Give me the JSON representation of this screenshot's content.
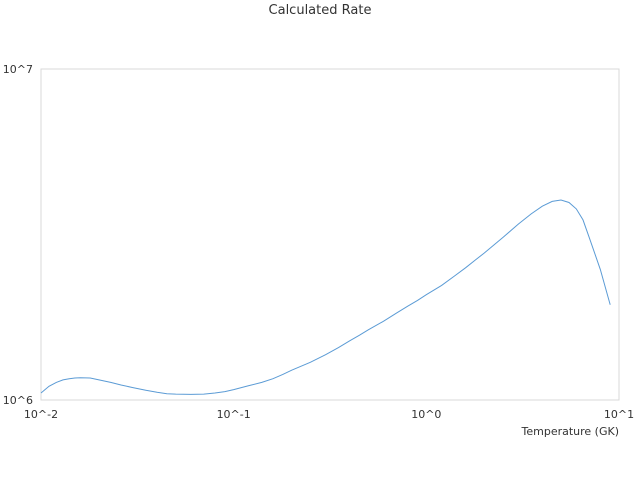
{
  "chart_data": {
    "type": "line",
    "title": "Calculated Rate",
    "xlabel": "Temperature (GK)",
    "ylabel": "",
    "xscale": "log",
    "yscale": "log",
    "xlim": [
      0.01,
      10
    ],
    "ylim": [
      1000000,
      10000000
    ],
    "x_tick_labels": [
      "10^-2",
      "10^-1",
      "10^0",
      "10^1"
    ],
    "y_tick_labels": [
      "10^6",
      "10^7"
    ],
    "grid": false,
    "legend": "none",
    "series": [
      {
        "color": "#5b9bd5",
        "x": [
          0.01,
          0.011,
          0.012,
          0.013,
          0.014,
          0.015,
          0.016,
          0.018,
          0.02,
          0.023,
          0.026,
          0.03,
          0.035,
          0.04,
          0.045,
          0.05,
          0.06,
          0.07,
          0.08,
          0.09,
          0.1,
          0.12,
          0.14,
          0.16,
          0.18,
          0.2,
          0.25,
          0.3,
          0.35,
          0.4,
          0.45,
          0.5,
          0.6,
          0.7,
          0.8,
          0.9,
          1.0,
          1.2,
          1.4,
          1.6,
          1.8,
          2.0,
          2.5,
          3.0,
          3.5,
          4.0,
          4.5,
          5.0,
          5.5,
          6.0,
          6.5,
          7.0,
          8.0,
          9.0
        ],
        "y": [
          1050000,
          1100000,
          1130000,
          1150000,
          1160000,
          1165000,
          1168000,
          1165000,
          1150000,
          1130000,
          1110000,
          1090000,
          1070000,
          1055000,
          1045000,
          1042000,
          1040000,
          1042000,
          1050000,
          1060000,
          1075000,
          1105000,
          1130000,
          1160000,
          1195000,
          1230000,
          1300000,
          1370000,
          1440000,
          1510000,
          1570000,
          1630000,
          1730000,
          1830000,
          1920000,
          2000000,
          2080000,
          2220000,
          2370000,
          2510000,
          2650000,
          2780000,
          3100000,
          3400000,
          3650000,
          3850000,
          3980000,
          4020000,
          3950000,
          3780000,
          3500000,
          3100000,
          2480000,
          1940000
        ]
      }
    ]
  }
}
